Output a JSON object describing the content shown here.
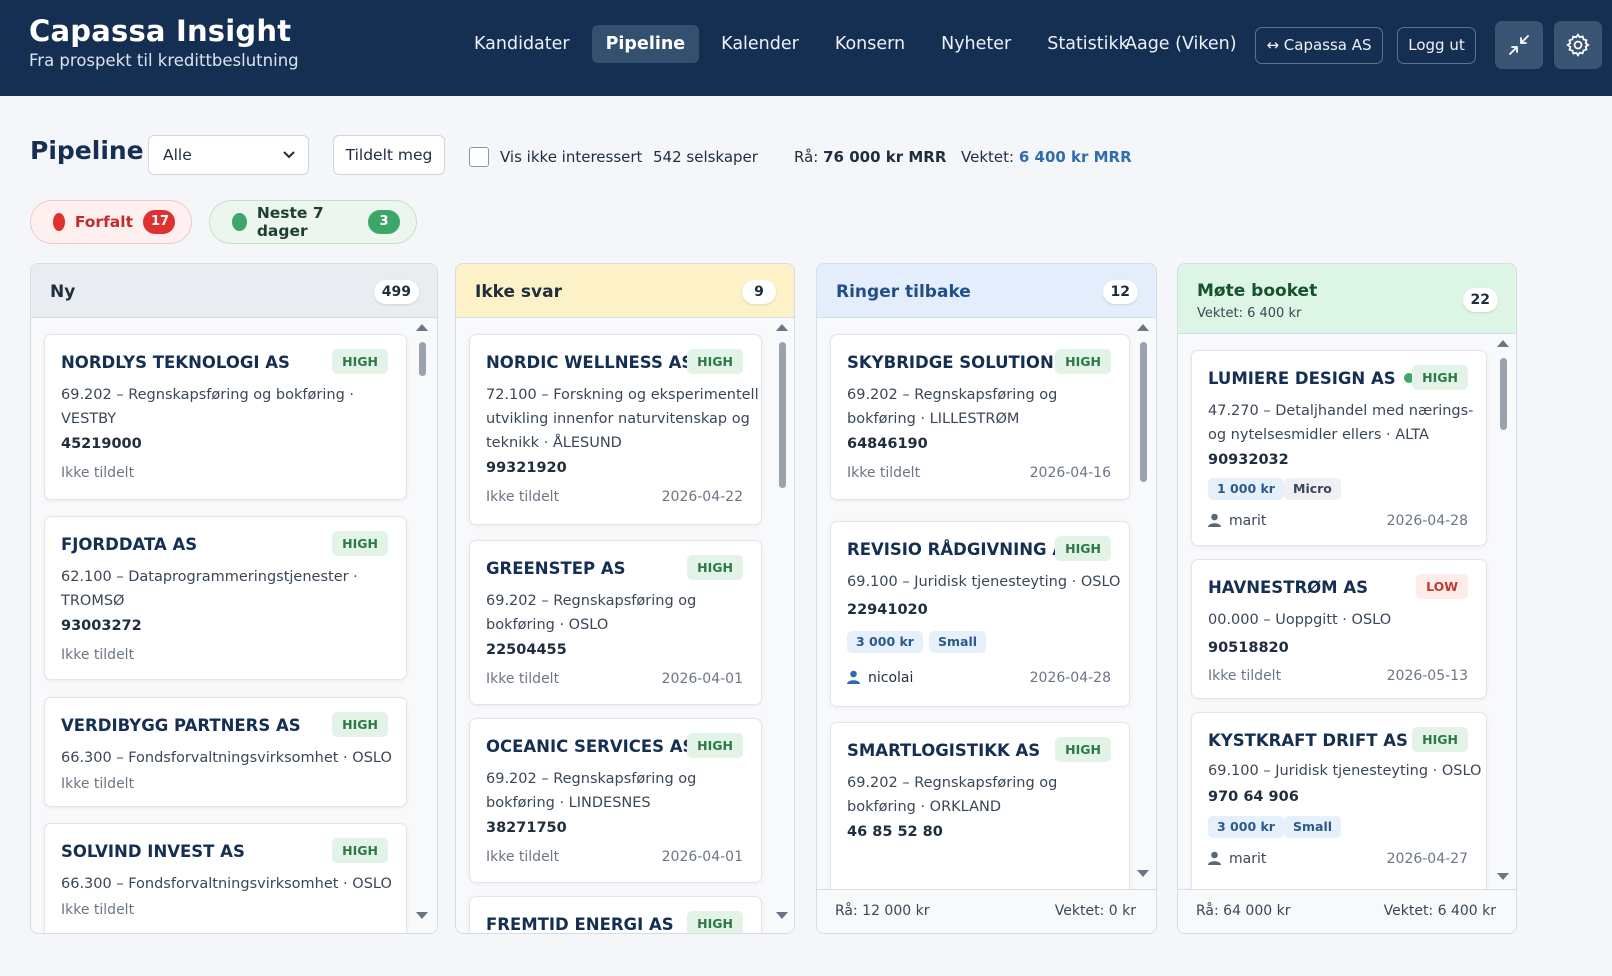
{
  "app": {
    "title": "Capassa Insight",
    "subtitle": "Fra prospekt til kredittbeslutning"
  },
  "nav": {
    "items": [
      {
        "label": "Kandidater",
        "active": false
      },
      {
        "label": "Pipeline",
        "active": true
      },
      {
        "label": "Kalender",
        "active": false
      },
      {
        "label": "Konsern",
        "active": false
      },
      {
        "label": "Nyheter",
        "active": false
      },
      {
        "label": "Statistikk",
        "active": false
      }
    ],
    "user": "Aage (Viken)",
    "switch_label": "↔ Capassa AS",
    "logout_label": "Logg ut",
    "icons": [
      "collapse-icon",
      "gear-icon"
    ]
  },
  "toolbar": {
    "title": "Pipeline",
    "filter_value": "Alle",
    "assigned_label": "Tildelt meg",
    "not_interested_label": "Vis ikke interessert",
    "company_count": "542 selskaper",
    "raw_label": "Rå:",
    "raw_value": "76 000 kr MRR",
    "separator": "·",
    "weighted_label": "Vektet:",
    "weighted_value": "6 400 kr MRR"
  },
  "chips": {
    "overdue": {
      "label": "Forfalt",
      "count": "17",
      "color": "#e03131"
    },
    "next7": {
      "label": "Neste 7 dager",
      "count": "3",
      "color": "#3fa66a"
    }
  },
  "columns": [
    {
      "title": "Ny",
      "count": "499",
      "subtitle": "",
      "header_color": "#e9edf2",
      "cards": [
        {
          "name": "NORDLYS TEKNOLOGI AS",
          "priority": "HIGH",
          "desc": [
            "69.202 – Regnskapsføring og bokføring ·",
            "VESTBY"
          ],
          "number": "45219000",
          "assignee": "Ikke tildelt",
          "date": ""
        },
        {
          "name": "FJORDDATA AS",
          "priority": "HIGH",
          "desc": [
            "62.100 – Dataprogrammeringstjenester ·",
            "TROMSØ"
          ],
          "number": "93003272",
          "assignee": "Ikke tildelt",
          "date": ""
        },
        {
          "name": "VERDIBYGG PARTNERS AS",
          "priority": "HIGH",
          "desc": [
            "66.300 – Fondsforvaltningsvirksomhet · OSLO"
          ],
          "number": "",
          "assignee": "Ikke tildelt",
          "date": ""
        },
        {
          "name": "SOLVIND INVEST AS",
          "priority": "HIGH",
          "desc": [
            "66.300 – Fondsforvaltningsvirksomhet · OSLO"
          ],
          "number": "",
          "assignee": "Ikke tildelt",
          "date": ""
        }
      ]
    },
    {
      "title": "Ikke svar",
      "count": "9",
      "subtitle": "",
      "header_color": "#fdf1c7",
      "cards": [
        {
          "name": "NORDIC WELLNESS AS",
          "priority": "HIGH",
          "status_dot": "#e03131",
          "desc": [
            "72.100 – Forskning og eksperimentell",
            "utvikling innenfor naturvitenskap og",
            "teknikk · ÅLESUND"
          ],
          "number": "99321920",
          "assignee": "Ikke tildelt",
          "date": "2026-04-22"
        },
        {
          "name": "GREENSTEP AS",
          "priority": "HIGH",
          "desc": [
            "69.202 – Regnskapsføring og",
            "bokføring · OSLO"
          ],
          "number": "22504455",
          "assignee": "Ikke tildelt",
          "date": "2026-04-01"
        },
        {
          "name": "OCEANIC SERVICES AS",
          "priority": "HIGH",
          "desc": [
            "69.202 – Regnskapsføring og",
            "bokføring · LINDESNES"
          ],
          "number": "38271750",
          "assignee": "Ikke tildelt",
          "date": "2026-04-01"
        },
        {
          "name": "FREMTID ENERGI AS",
          "priority": "HIGH",
          "desc": [],
          "number": "",
          "assignee": "",
          "date": ""
        }
      ]
    },
    {
      "title": "Ringer tilbake",
      "count": "12",
      "subtitle": "",
      "header_color": "#e3edfb",
      "footer_raw": "Rå: 12 000 kr",
      "footer_weighted": "Vektet: 0 kr",
      "cards": [
        {
          "name": "SKYBRIDGE SOLUTIONS AS",
          "priority": "HIGH",
          "desc": [
            "69.202 – Regnskapsføring og",
            "bokføring · LILLESTRØM"
          ],
          "number": "64846190",
          "assignee": "Ikke tildelt",
          "date": "2026-04-16"
        },
        {
          "name": "REVISIO RÅDGIVNING AS",
          "priority": "HIGH",
          "desc": [
            "69.100 – Juridisk tjenesteyting · OSLO"
          ],
          "number": "22941020",
          "tags": [
            "3 000 kr",
            "Small"
          ],
          "assignee": "nicolai",
          "date": "2026-04-28"
        },
        {
          "name": "SMARTLOGISTIKK AS",
          "priority": "HIGH",
          "desc": [
            "69.202 – Regnskapsføring og",
            "bokføring · ORKLAND"
          ],
          "number": "46 85 52 80",
          "assignee": "",
          "date": ""
        }
      ]
    },
    {
      "title": "Møte booket",
      "count": "22",
      "subtitle": "Vektet: 6 400 kr",
      "header_color": "#dcf5e4",
      "footer_raw": "Rå: 64 000 kr",
      "footer_weighted": "Vektet: 6 400 kr",
      "cards": [
        {
          "name": "LUMIERE DESIGN AS",
          "priority": "HIGH",
          "status_dot": "#3fa66a",
          "desc": [
            "47.270 – Detaljhandel med nærings-",
            "og nytelsesmidler ellers · ALTA"
          ],
          "number": "90932032",
          "tags": [
            "1 000 kr",
            "Micro"
          ],
          "assignee": "marit",
          "date": "2026-04-28"
        },
        {
          "name": "HAVNESTRØM AS",
          "priority": "LOW",
          "desc": [
            "00.000 – Uoppgitt · OSLO"
          ],
          "number": "90518820",
          "assignee": "Ikke tildelt",
          "date": "2026-05-13"
        },
        {
          "name": "KYSTKRAFT DRIFT AS",
          "priority": "HIGH",
          "desc": [
            "69.100 – Juridisk tjenesteyting · OSLO"
          ],
          "number": "970 64 906",
          "tags": [
            "3 000 kr",
            "Small"
          ],
          "assignee": "marit",
          "date": "2026-04-27"
        }
      ]
    }
  ]
}
